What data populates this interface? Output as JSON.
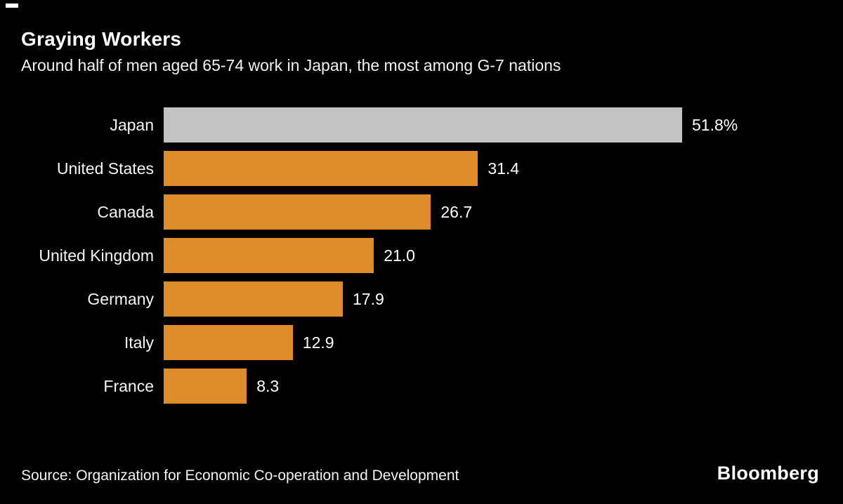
{
  "header": {
    "title": "Graying Workers",
    "subtitle": "Around half of men aged 65-74 work in Japan, the most among G-7 nations"
  },
  "chart_data": {
    "type": "bar",
    "orientation": "horizontal",
    "title": "Graying Workers",
    "subtitle": "Around half of men aged 65-74 work in Japan, the most among G-7 nations",
    "categories": [
      "Japan",
      "United States",
      "Canada",
      "United Kingdom",
      "Germany",
      "Italy",
      "France"
    ],
    "values": [
      51.8,
      31.4,
      26.7,
      21.0,
      17.9,
      12.9,
      8.3
    ],
    "value_labels": [
      "51.8%",
      "31.4",
      "26.7",
      "21.0",
      "17.9",
      "12.9",
      "8.3"
    ],
    "xlim": [
      0,
      51.8
    ],
    "grid": false,
    "legend": "none",
    "highlight_index": 0,
    "colors": {
      "bar_default": "#dd8c29",
      "bar_highlight": "#c3c3c3",
      "background": "#000000",
      "text": "#ffffff"
    }
  },
  "footer": {
    "source": "Source: Organization for Economic Co-operation and Development",
    "brand": "Bloomberg"
  }
}
